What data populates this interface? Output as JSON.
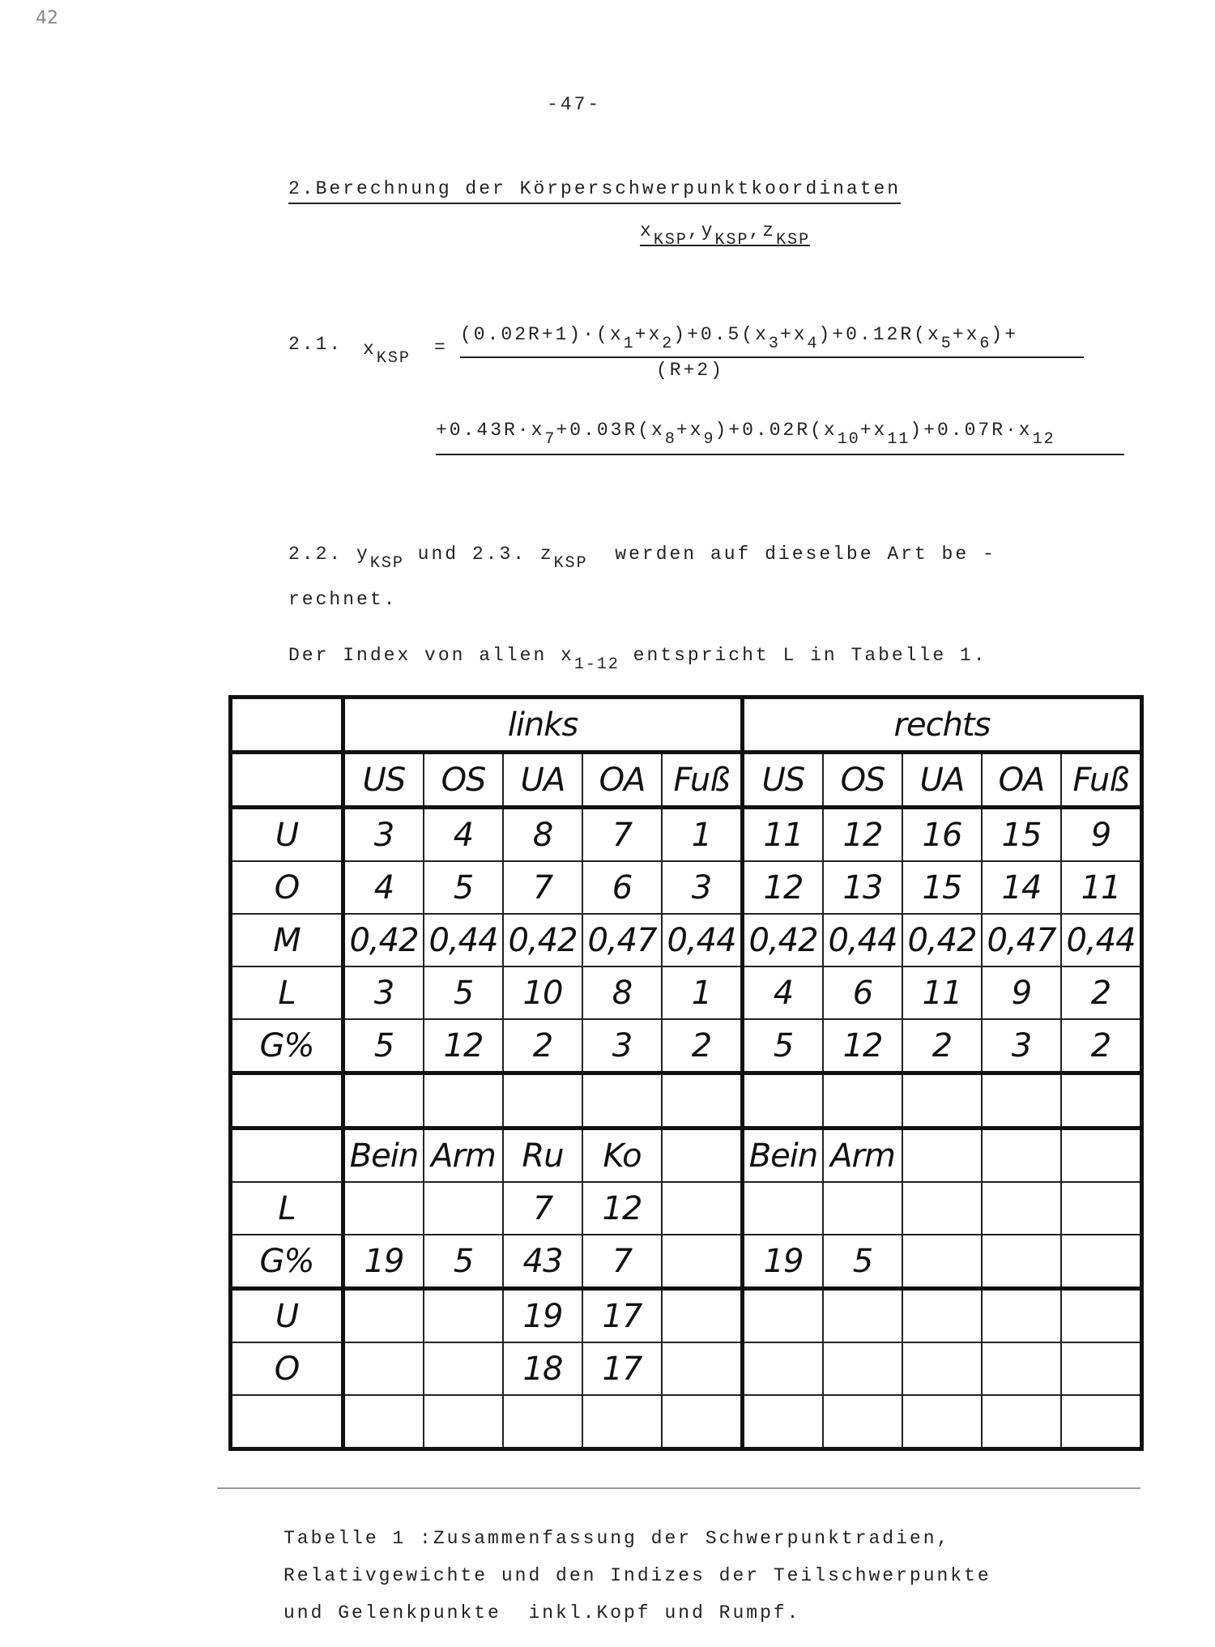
{
  "margin_note": "42",
  "page_number": "-47-",
  "heading": {
    "title": "2.Berechnung der Körperschwerpunktkoordinaten",
    "symbols": [
      "x",
      {
        "sub": "KSP"
      },
      ",y",
      {
        "sub": "KSP"
      },
      ",z",
      {
        "sub": "KSP"
      }
    ]
  },
  "formula": {
    "label": "2.1.",
    "lhs": [
      "x",
      {
        "sub": "KSP"
      }
    ],
    "eq": "=",
    "numerator": [
      "(0.02R+1)·(x",
      {
        "sub": "1"
      },
      "+x",
      {
        "sub": "2"
      },
      ")+0.5(x",
      {
        "sub": "3"
      },
      "+x",
      {
        "sub": "4"
      },
      ")+0.12R(x",
      {
        "sub": "5"
      },
      "+x",
      {
        "sub": "6"
      },
      ")+"
    ],
    "denominator": "(R+2)",
    "continuation": [
      "+0.43R·x",
      {
        "sub": "7"
      },
      "+0.03R(x",
      {
        "sub": "8"
      },
      "+x",
      {
        "sub": "9"
      },
      ")+0.02R(x",
      {
        "sub": "10"
      },
      "+x",
      {
        "sub": "11"
      },
      ")+0.07R·x",
      {
        "sub": "12"
      }
    ]
  },
  "paragraph": {
    "lines": [
      [
        "2.2. y",
        {
          "sub": "KSP"
        },
        " und 2.3. z",
        {
          "sub": "KSP"
        },
        "  werden auf dieselbe Art be -"
      ],
      [
        "rechnet."
      ]
    ]
  },
  "index_note": [
    "Der Index von allen x",
    {
      "sub": "1-12"
    },
    " entspricht L in Tabelle 1."
  ],
  "table": {
    "groups": [
      "links",
      "rechts"
    ],
    "rows": [
      [
        null,
        "US",
        "OS",
        "UA",
        "OA",
        "Fuß",
        "US",
        "OS",
        "UA",
        "OA",
        "Fuß"
      ],
      [
        "U",
        3,
        4,
        8,
        7,
        1,
        11,
        12,
        16,
        15,
        9
      ],
      [
        "O",
        4,
        5,
        7,
        6,
        3,
        12,
        13,
        15,
        14,
        11
      ],
      [
        "M",
        "0,42",
        "0,44",
        "0,42",
        "0,47",
        "0,44",
        "0,42",
        "0,44",
        "0,42",
        "0,47",
        "0,44"
      ],
      [
        "L",
        3,
        5,
        10,
        8,
        1,
        4,
        6,
        11,
        9,
        2
      ],
      [
        "G%",
        5,
        12,
        2,
        3,
        2,
        5,
        12,
        2,
        3,
        2
      ],
      [
        null,
        null,
        null,
        null,
        null,
        null,
        null,
        null,
        null,
        null,
        null
      ],
      [
        null,
        "Bein",
        "Arm",
        "Ru",
        "Ko",
        null,
        "Bein",
        "Arm",
        null,
        null,
        null
      ],
      [
        "L",
        null,
        null,
        7,
        12,
        null,
        null,
        null,
        null,
        null,
        null
      ],
      [
        "G%",
        19,
        5,
        43,
        7,
        null,
        19,
        5,
        null,
        null,
        null
      ],
      [
        "U",
        null,
        null,
        19,
        17,
        null,
        null,
        null,
        null,
        null,
        null
      ],
      [
        "O",
        null,
        null,
        18,
        17,
        null,
        null,
        null,
        null,
        null,
        null
      ],
      [
        null,
        null,
        null,
        null,
        null,
        null,
        null,
        null,
        null,
        null,
        null
      ]
    ]
  },
  "caption": {
    "lines": [
      "Tabelle 1 :Zusammenfassung der Schwerpunktradien,",
      "Relativgewichte und den Indizes der Teilschwerpunkte",
      "und Gelenkpunkte  inkl.Kopf und Rumpf."
    ]
  }
}
